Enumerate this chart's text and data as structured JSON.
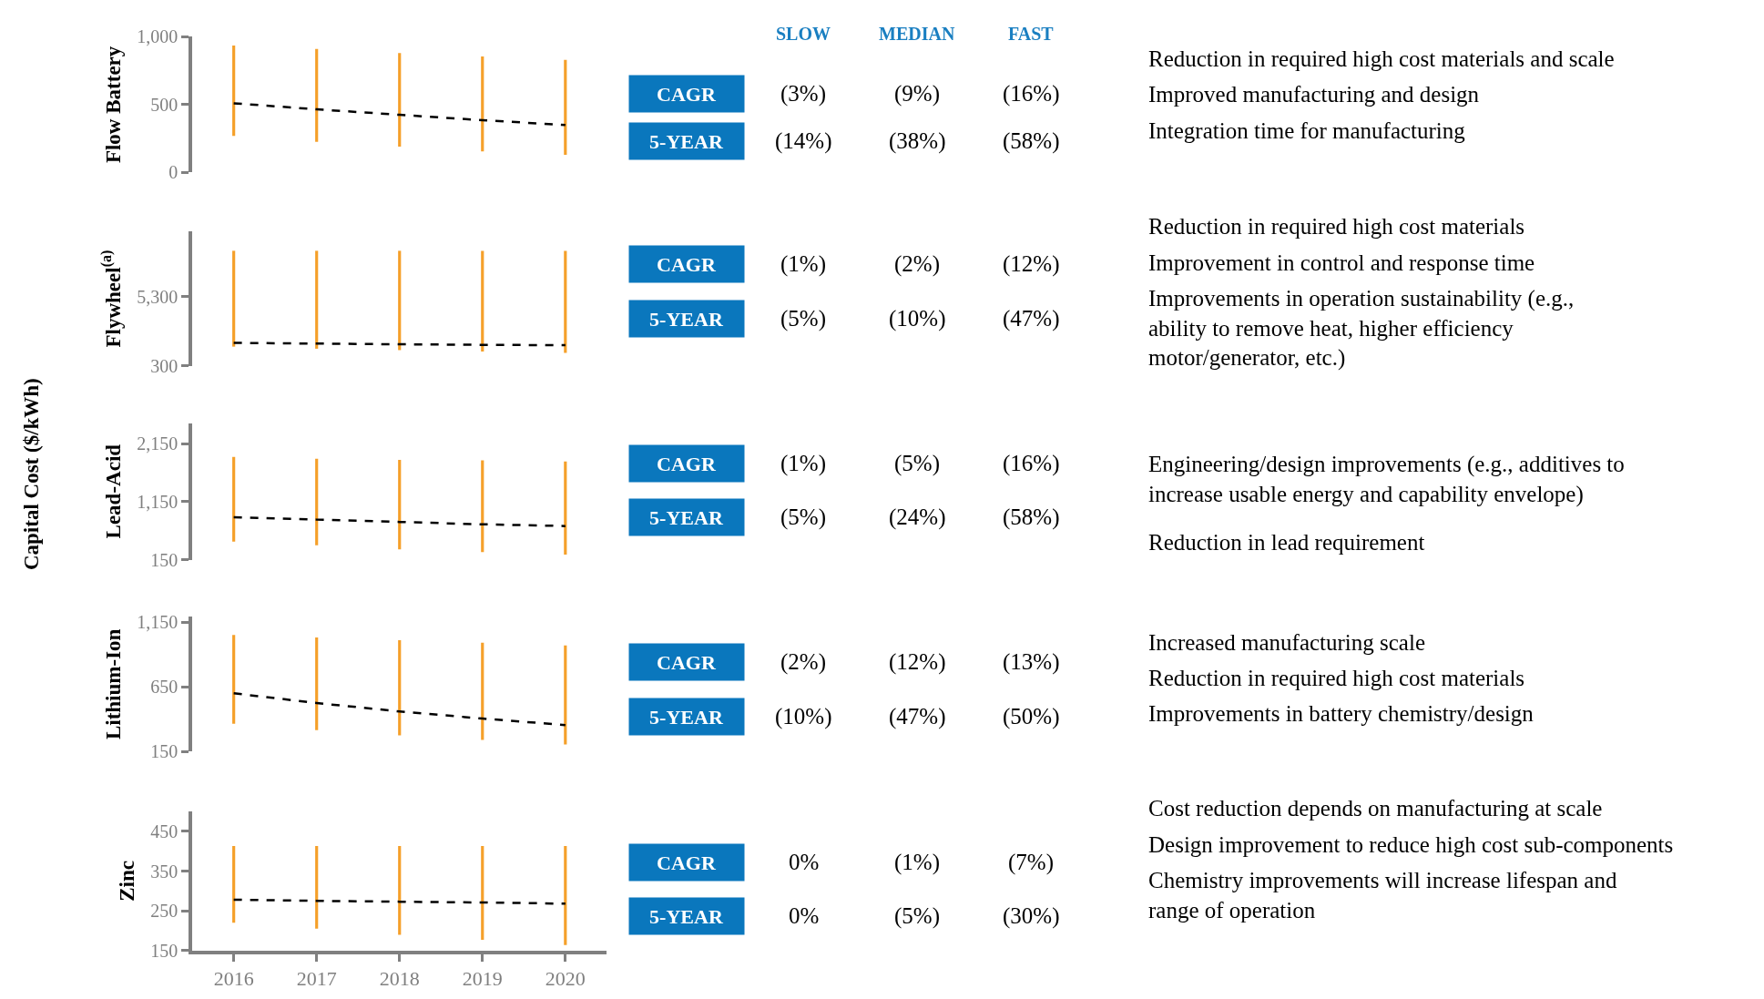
{
  "chart_data": [
    {
      "type": "bar",
      "ylabel": "Flow Battery",
      "annotations": [
        "Capital Cost ($/kWh)"
      ],
      "categories": [
        "2016",
        "2017",
        "2018",
        "2019",
        "2020"
      ],
      "ylim": [
        0,
        1000
      ],
      "yticks": [
        0,
        500,
        {
          "value": 1000,
          "label": "1,000"
        }
      ],
      "tick_labels": "y",
      "series": [
        {
          "type": "bar",
          "color": "#f5a02a",
          "base": [
            270,
            225,
            190,
            155,
            130
          ],
          "values": [
            665,
            685,
            690,
            700,
            700
          ]
        },
        {
          "type": "line",
          "color": "#000000",
          "line_style": "dashed",
          "marker": "none",
          "values": [
            510,
            465,
            425,
            385,
            350
          ]
        }
      ]
    },
    {
      "type": "bar",
      "ylabel": "Flywheel$^{(a)}$",
      "categories": [
        "2016",
        "2017",
        "2018",
        "2019",
        "2020"
      ],
      "ylim": [
        300,
        10000
      ],
      "yticks": [
        300,
        {
          "value": 5300,
          "label": "5,300"
        }
      ],
      "tick_labels": "y",
      "series": [
        {
          "type": "bar",
          "color": "#f5a02a",
          "base": [
            1700,
            1550,
            1450,
            1350,
            1250
          ],
          "values": [
            6900,
            7050,
            7150,
            7250,
            7350
          ]
        },
        {
          "type": "line",
          "color": "#000000",
          "line_style": "dashed",
          "marker": "none",
          "values": [
            1970,
            1920,
            1870,
            1830,
            1800
          ]
        }
      ]
    },
    {
      "type": "bar",
      "ylabel": "Lead-Acid",
      "categories": [
        "2016",
        "2017",
        "2018",
        "2019",
        "2020"
      ],
      "ylim": [
        150,
        2500
      ],
      "yticks": [
        150,
        {
          "value": 1150,
          "label": "1,150"
        },
        {
          "value": 2150,
          "label": "2,150"
        }
      ],
      "tick_labels": "y",
      "series": [
        {
          "type": "bar",
          "color": "#f5a02a",
          "base": [
            460,
            400,
            330,
            280,
            240
          ],
          "values": [
            1460,
            1490,
            1540,
            1580,
            1600
          ]
        },
        {
          "type": "line",
          "color": "#000000",
          "line_style": "dashed",
          "marker": "none",
          "values": [
            880,
            840,
            800,
            760,
            730
          ]
        }
      ]
    },
    {
      "type": "bar",
      "ylabel": "Lithium-Ion",
      "categories": [
        "2016",
        "2017",
        "2018",
        "2019",
        "2020"
      ],
      "ylim": [
        150,
        1190
      ],
      "yticks": [
        150,
        650,
        {
          "value": 1150,
          "label": "1,150"
        }
      ],
      "tick_labels": "y",
      "series": [
        {
          "type": "bar",
          "color": "#f5a02a",
          "base": [
            365,
            315,
            275,
            240,
            205
          ],
          "values": [
            685,
            715,
            735,
            750,
            765
          ]
        },
        {
          "type": "line",
          "color": "#000000",
          "line_style": "dashed",
          "marker": "none",
          "values": [
            600,
            525,
            460,
            405,
            355
          ]
        }
      ]
    },
    {
      "type": "bar",
      "ylabel": "Zinc",
      "categories": [
        "2016",
        "2017",
        "2018",
        "2019",
        "2020"
      ],
      "ylim": [
        150,
        500
      ],
      "yticks": [
        150,
        250,
        350,
        450
      ],
      "series": [
        {
          "type": "bar",
          "color": "#f5a02a",
          "base": [
            220,
            205,
            190,
            177,
            164
          ],
          "values": [
            193,
            208,
            223,
            236,
            249
          ]
        },
        {
          "type": "line",
          "color": "#000000",
          "line_style": "dashed",
          "marker": "none",
          "values": [
            278,
            275,
            273,
            271,
            268
          ]
        }
      ]
    },
    {
      "type": "other",
      "categories": [
        "SLOW",
        "MEDIAN",
        "FAST"
      ],
      "y_categories": [
        "CAGR",
        "5-YEAR",
        "CAGR",
        "5-YEAR",
        "CAGR",
        "5-YEAR",
        "CAGR",
        "5-YEAR",
        "CAGR",
        "5-YEAR"
      ],
      "cell_labels": [
        [
          "(3%)",
          "(9%)",
          "(16%)"
        ],
        [
          "(14%)",
          "(38%)",
          "(58%)"
        ],
        [
          "(1%)",
          "(2%)",
          "(12%)"
        ],
        [
          "(5%)",
          "(10%)",
          "(47%)"
        ],
        [
          "(1%)",
          "(5%)",
          "(16%)"
        ],
        [
          "(5%)",
          "(24%)",
          "(58%)"
        ],
        [
          "(2%)",
          "(12%)",
          "(13%)"
        ],
        [
          "(10%)",
          "(47%)",
          "(50%)"
        ],
        [
          "0%",
          "(1%)",
          "(7%)"
        ],
        [
          "0%",
          "(5%)",
          "(30%)"
        ]
      ]
    },
    {
      "type": "other",
      "annotations": [
        "Reduction in required high cost materials and scale",
        "Improved manufacturing and design",
        "Integration time for manufacturing"
      ]
    },
    {
      "type": "other",
      "annotations": [
        "Reduction in required high cost materials",
        "Improvement in control and response time",
        "Improvements in operation sustainability (e.g., ability to remove heat, higher efficiency motor/generator, etc.)"
      ]
    },
    {
      "type": "other",
      "annotations": [
        "Engineering/design improvements (e.g., additives to increase usable energy and capability envelope)",
        "Reduction in lead requirement"
      ]
    },
    {
      "type": "other",
      "annotations": [
        "Increased manufacturing scale",
        "Reduction in required high cost materials",
        "Improvements in battery chemistry/design"
      ]
    },
    {
      "type": "other",
      "annotations": [
        "Cost reduction depends on manufacturing at scale",
        "Design improvement to reduce high cost sub-components",
        "Chemistry improvements will increase lifespan and range of operation"
      ]
    }
  ]
}
